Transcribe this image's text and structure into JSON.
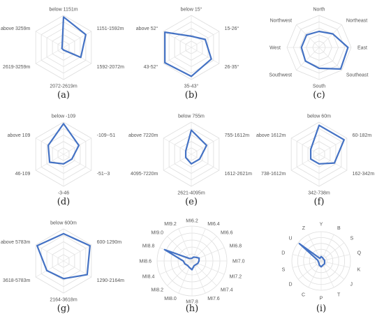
{
  "colors": {
    "series": "#4472c4",
    "grid": "#dddddd",
    "text": "#555555"
  },
  "chart_data": [
    {
      "panel_label": "(a)",
      "type": "radar",
      "grid": "polygon",
      "rings": 5,
      "ylim": [
        0,
        1
      ],
      "categories": [
        "below 1151m",
        "1151-1592m",
        "1592-2072m",
        "2072-2619m",
        "2619-3259m",
        "above 3259m"
      ],
      "values": [
        0.95,
        0.8,
        0.62,
        0.08,
        0.06,
        0.05
      ]
    },
    {
      "panel_label": "(b)",
      "type": "radar",
      "grid": "polygon",
      "rings": 5,
      "ylim": [
        0,
        1
      ],
      "categories": [
        "below 15°",
        "15-26°",
        "26-35°",
        "35-43°",
        "43-52°",
        "above 52°"
      ],
      "values": [
        0.35,
        0.5,
        0.72,
        0.9,
        0.95,
        0.95
      ]
    },
    {
      "panel_label": "(c)",
      "type": "radar",
      "grid": "polygon",
      "rings": 5,
      "ylim": [
        0,
        1
      ],
      "categories": [
        "North",
        "Northeast",
        "East",
        "Southeast",
        "South",
        "Southwest",
        "West",
        "Northwest"
      ],
      "values": [
        0.5,
        0.6,
        0.9,
        0.95,
        0.65,
        0.6,
        0.55,
        0.55
      ]
    },
    {
      "panel_label": "(d)",
      "type": "radar",
      "grid": "polygon",
      "rings": 5,
      "ylim": [
        0,
        1
      ],
      "categories": [
        "below -109",
        "-109--51",
        "-51--3",
        "-3-46",
        "46-109",
        "above 109"
      ],
      "values": [
        0.95,
        0.55,
        0.3,
        0.3,
        0.5,
        0.55
      ]
    },
    {
      "panel_label": "(e)",
      "type": "radar",
      "grid": "polygon",
      "rings": 5,
      "ylim": [
        0,
        1
      ],
      "categories": [
        "below 755m",
        "755-1612m",
        "1612-2621m",
        "2621-4095m",
        "4095-7220m",
        "above 7220m"
      ],
      "values": [
        0.75,
        0.55,
        0.3,
        0.3,
        0.2,
        0.2
      ]
    },
    {
      "panel_label": "(f)",
      "type": "radar",
      "grid": "polygon",
      "rings": 5,
      "ylim": [
        0,
        1
      ],
      "categories": [
        "below 60m",
        "60-182m",
        "162-342m",
        "342-738m",
        "738-1612m",
        "above 1612m"
      ],
      "values": [
        0.9,
        0.9,
        0.55,
        0.3,
        0.3,
        0.3
      ]
    },
    {
      "panel_label": "(g)",
      "type": "radar",
      "grid": "polygon",
      "rings": 5,
      "ylim": [
        0,
        1
      ],
      "categories": [
        "below 600m",
        "600-1290m",
        "1290-2164m",
        "2164-3618m",
        "3618-5783m",
        "above 5783m"
      ],
      "values": [
        0.85,
        0.95,
        0.85,
        0.55,
        0.6,
        0.95
      ]
    },
    {
      "panel_label": "(h)",
      "type": "radar",
      "grid": "circle",
      "rings": 5,
      "ylim": [
        0,
        1
      ],
      "categories": [
        "MI6.2",
        "MI6.4",
        "MI6.6",
        "MI6.8",
        "MI7.0",
        "MI7.2",
        "MI7.4",
        "MI7.6",
        "MI7.8",
        "MI8.0",
        "MI8.2",
        "MI8.4",
        "MI8.6",
        "MI8.8",
        "MI9.0",
        "MI9.2"
      ],
      "values": [
        0.08,
        0.12,
        0.15,
        0.22,
        0.2,
        0.18,
        0.15,
        0.15,
        0.25,
        0.2,
        0.18,
        0.22,
        0.25,
        0.85,
        0.1,
        0.08
      ]
    },
    {
      "panel_label": "(i)",
      "type": "radar",
      "grid": "circle",
      "rings": 5,
      "ylim": [
        0,
        1
      ],
      "categories": [
        "Y",
        "B",
        "S",
        "Q",
        "K",
        "J",
        "T",
        "P",
        "C",
        "D",
        "S",
        "D",
        "U",
        "Z"
      ],
      "values": [
        0.15,
        0.12,
        0.1,
        0.12,
        0.12,
        0.15,
        0.15,
        0.2,
        0.15,
        0.1,
        0.1,
        0.12,
        0.95,
        0.1
      ]
    }
  ]
}
